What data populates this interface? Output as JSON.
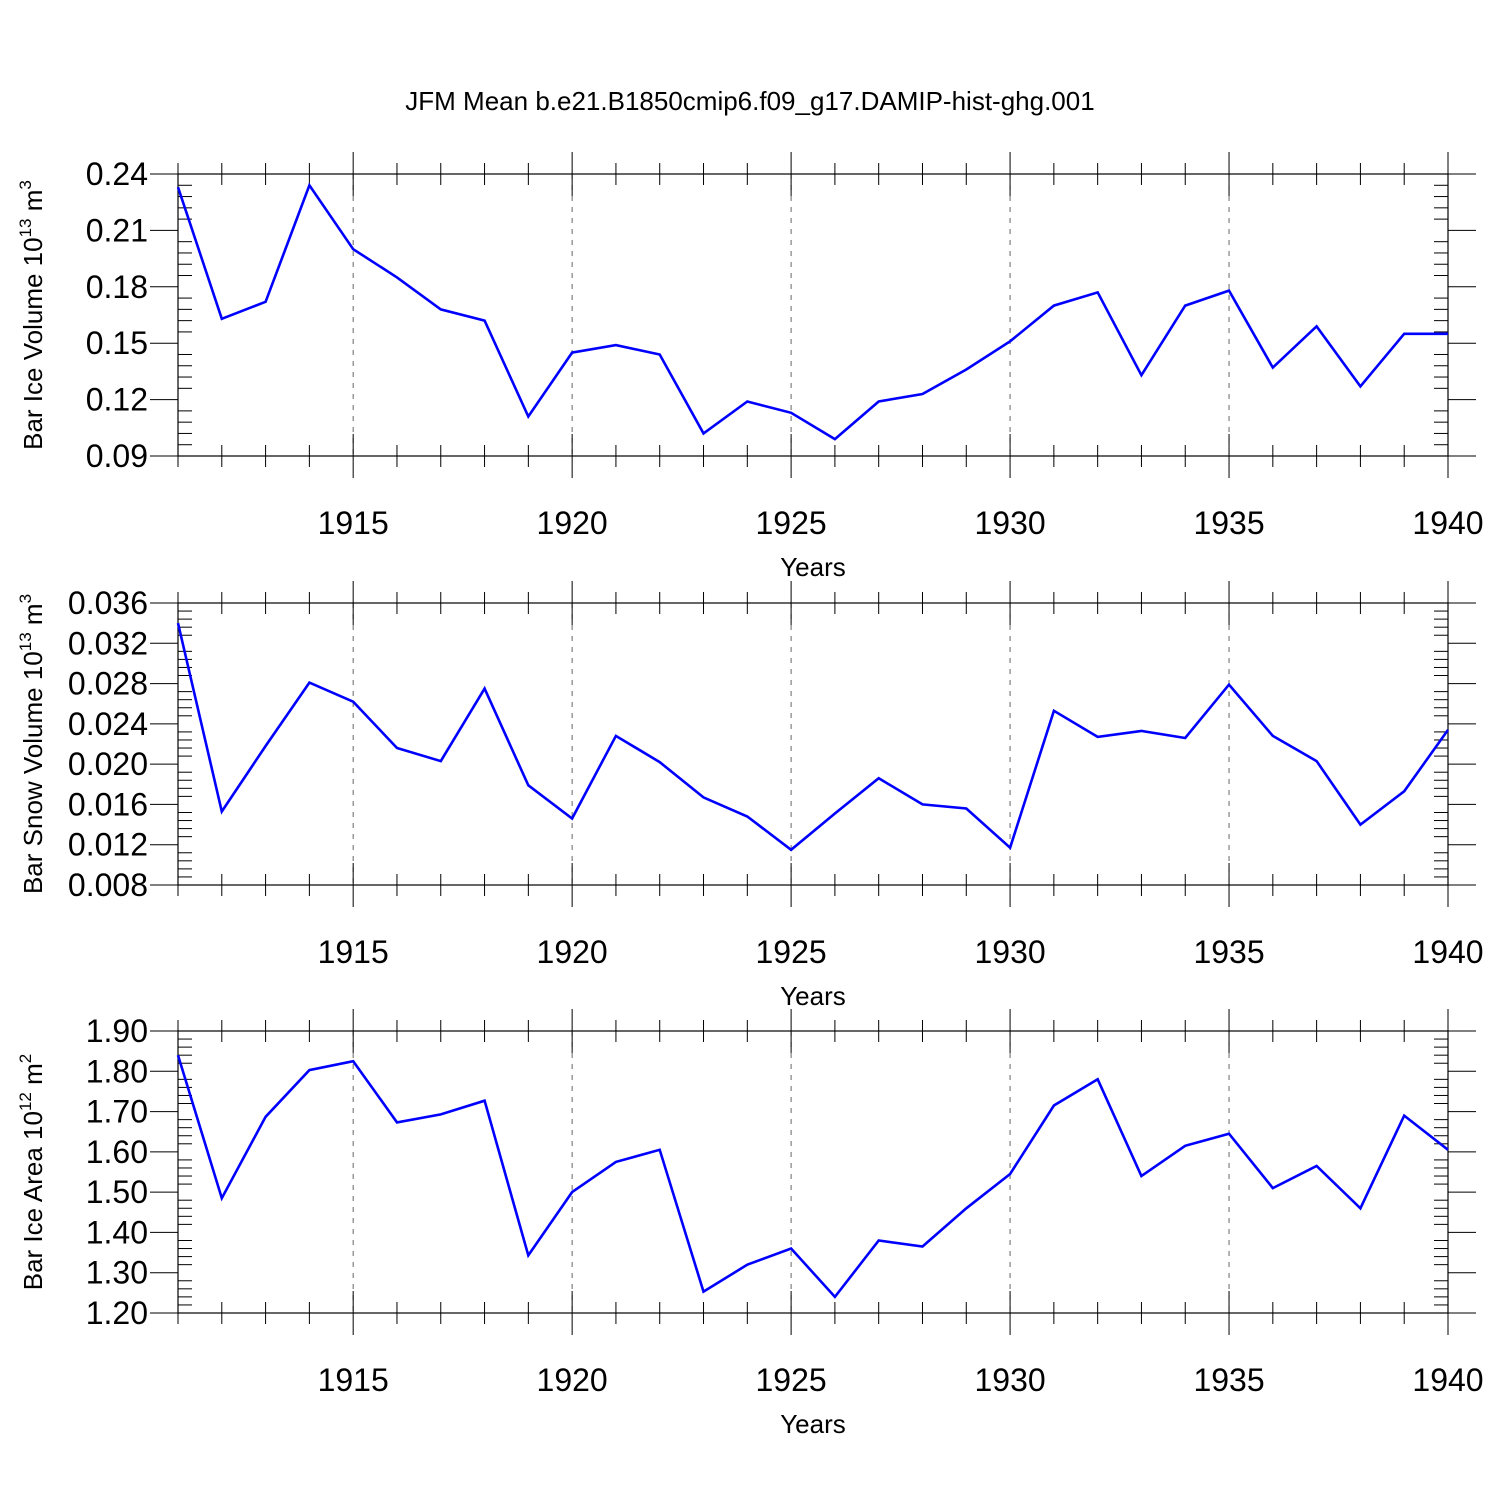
{
  "figure": {
    "title": "JFM Mean b.e21.B1850cmip6.f09_g17.DAMIP-hist-ghg.001"
  },
  "colors": {
    "line": "#0000ff",
    "frame": "#000000",
    "grid": "#666666"
  },
  "chart_data": [
    {
      "type": "line",
      "title": "JFM Mean b.e21.B1850cmip6.f09_g17.DAMIP-hist-ghg.001",
      "xlabel": "Years",
      "ylabel": {
        "text": "Bar Ice Volume 10",
        "exponent": "13",
        "unit": " m",
        "unit_exponent": "3"
      },
      "xlim": [
        1911,
        1940
      ],
      "ylim": [
        0.09,
        0.24
      ],
      "xticks": [
        1915,
        1920,
        1925,
        1930,
        1935,
        1940
      ],
      "yticks": [
        "0.09",
        "0.12",
        "0.15",
        "0.18",
        "0.21",
        "0.24"
      ],
      "grid": "vertical dashed at major x ticks",
      "x": [
        1911,
        1912,
        1913,
        1914,
        1915,
        1916,
        1917,
        1918,
        1919,
        1920,
        1921,
        1922,
        1923,
        1924,
        1925,
        1926,
        1927,
        1928,
        1929,
        1930,
        1931,
        1932,
        1933,
        1934,
        1935,
        1936,
        1937,
        1938,
        1939,
        1940
      ],
      "values": [
        0.233,
        0.163,
        0.172,
        0.234,
        0.2,
        0.185,
        0.168,
        0.162,
        0.111,
        0.145,
        0.149,
        0.144,
        0.102,
        0.119,
        0.113,
        0.099,
        0.119,
        0.123,
        0.136,
        0.151,
        0.17,
        0.177,
        0.133,
        0.17,
        0.178,
        0.137,
        0.159,
        0.127,
        0.155,
        0.155
      ]
    },
    {
      "type": "line",
      "xlabel": "Years",
      "ylabel": {
        "text": "Bar Snow Volume 10",
        "exponent": "13",
        "unit": " m",
        "unit_exponent": "3"
      },
      "xlim": [
        1911,
        1940
      ],
      "ylim": [
        0.008,
        0.036
      ],
      "xticks": [
        1915,
        1920,
        1925,
        1930,
        1935,
        1940
      ],
      "yticks": [
        "0.008",
        "0.012",
        "0.016",
        "0.020",
        "0.024",
        "0.028",
        "0.032",
        "0.036"
      ],
      "grid": "vertical dashed at major x ticks",
      "x": [
        1911,
        1912,
        1913,
        1914,
        1915,
        1916,
        1917,
        1918,
        1919,
        1920,
        1921,
        1922,
        1923,
        1924,
        1925,
        1926,
        1927,
        1928,
        1929,
        1930,
        1931,
        1932,
        1933,
        1934,
        1935,
        1936,
        1937,
        1938,
        1939,
        1940
      ],
      "values": [
        0.034,
        0.0153,
        0.0218,
        0.0281,
        0.0262,
        0.0216,
        0.0203,
        0.0275,
        0.0179,
        0.0146,
        0.0228,
        0.0202,
        0.0167,
        0.0148,
        0.0115,
        0.0151,
        0.0186,
        0.016,
        0.0156,
        0.0117,
        0.0253,
        0.0227,
        0.0233,
        0.0226,
        0.0279,
        0.0228,
        0.0203,
        0.014,
        0.0173,
        0.0234
      ]
    },
    {
      "type": "line",
      "xlabel": "Years",
      "ylabel": {
        "text": "Bar Ice Area 10",
        "exponent": "12",
        "unit": " m",
        "unit_exponent": "2"
      },
      "xlim": [
        1911,
        1940
      ],
      "ylim": [
        1.2,
        1.9
      ],
      "xticks": [
        1915,
        1920,
        1925,
        1930,
        1935,
        1940
      ],
      "yticks": [
        "1.20",
        "1.30",
        "1.40",
        "1.50",
        "1.60",
        "1.70",
        "1.80",
        "1.90"
      ],
      "grid": "vertical dashed at major x ticks",
      "x": [
        1911,
        1912,
        1913,
        1914,
        1915,
        1916,
        1917,
        1918,
        1919,
        1920,
        1921,
        1922,
        1923,
        1924,
        1925,
        1926,
        1927,
        1928,
        1929,
        1930,
        1931,
        1932,
        1933,
        1934,
        1935,
        1936,
        1937,
        1938,
        1939,
        1940
      ],
      "values": [
        1.84,
        1.485,
        1.687,
        1.803,
        1.825,
        1.673,
        1.693,
        1.727,
        1.343,
        1.5,
        1.575,
        1.605,
        1.253,
        1.32,
        1.36,
        1.24,
        1.38,
        1.365,
        1.46,
        1.545,
        1.715,
        1.78,
        1.54,
        1.615,
        1.645,
        1.51,
        1.565,
        1.46,
        1.69,
        1.605
      ]
    }
  ]
}
